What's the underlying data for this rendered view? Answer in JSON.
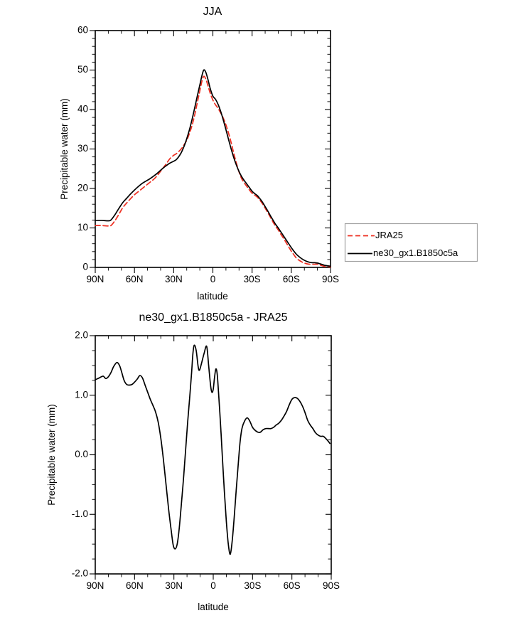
{
  "figure": {
    "background": "#ffffff",
    "axis_color": "#000000"
  },
  "chart_data": [
    {
      "type": "line",
      "title": "JJA",
      "xlabel": "latitude",
      "ylabel": "Precipitable water (mm)",
      "xlim": [
        90,
        -90
      ],
      "ylim": [
        0,
        60
      ],
      "grid": false,
      "xticks": {
        "values": [
          90,
          60,
          30,
          0,
          -30,
          -60,
          -90
        ],
        "labels": [
          "90N",
          "60N",
          "30N",
          "0",
          "30S",
          "60S",
          "90S"
        ],
        "minor_step": 10
      },
      "yticks": {
        "values": [
          0,
          10,
          20,
          30,
          40,
          50,
          60
        ],
        "labels": [
          "0",
          "10",
          "20",
          "30",
          "40",
          "50",
          "60"
        ],
        "minor_step": 2
      },
      "legend": {
        "position": "outside-right",
        "entries": [
          "JRA25",
          "ne30_gx1.B1850c5a"
        ]
      },
      "series": [
        {
          "name": "JRA25",
          "color": "#ee2e20",
          "style": "dashed",
          "x": [
            90,
            85,
            80,
            78,
            75,
            72,
            69,
            66,
            63,
            60,
            57,
            54,
            51,
            48,
            45,
            42,
            39,
            36,
            33,
            30,
            28,
            26,
            24,
            22,
            20,
            18,
            16,
            14,
            12,
            10,
            8.5,
            7,
            5.5,
            4,
            2,
            0,
            -2,
            -4,
            -6,
            -8,
            -10,
            -12,
            -14,
            -16,
            -18,
            -20,
            -22,
            -24,
            -26,
            -28,
            -30,
            -32,
            -34,
            -36,
            -38,
            -40,
            -42,
            -44,
            -46,
            -48,
            -50,
            -52,
            -54,
            -56,
            -58,
            -60,
            -62,
            -64,
            -66,
            -68,
            -70,
            -72,
            -74,
            -76,
            -78,
            -80,
            -82,
            -84,
            -86,
            -88,
            -90
          ],
          "y": [
            10.6,
            10.6,
            10.5,
            10.6,
            11.8,
            13.4,
            15.1,
            16.3,
            17.4,
            18.4,
            19.2,
            20.0,
            20.8,
            21.6,
            22.4,
            23.5,
            24.8,
            26.1,
            27.5,
            28.4,
            28.8,
            29.4,
            30.1,
            31.1,
            32.2,
            33.9,
            35.9,
            38.5,
            41.6,
            44.7,
            47.0,
            48.4,
            47.8,
            46.3,
            44.1,
            42.4,
            41.2,
            40.3,
            39.1,
            37.8,
            36.1,
            34.0,
            31.6,
            28.9,
            26.4,
            24.2,
            22.5,
            21.4,
            20.5,
            19.6,
            18.8,
            18.3,
            17.8,
            17.0,
            16.1,
            15.0,
            13.9,
            12.7,
            11.5,
            10.4,
            9.5,
            8.4,
            7.4,
            6.3,
            5.2,
            4.1,
            3.2,
            2.3,
            1.8,
            1.4,
            1.1,
            0.9,
            0.8,
            0.8,
            0.8,
            0.8,
            0.6,
            0.4,
            0.2,
            0.2,
            0.1
          ]
        },
        {
          "name": "ne30_gx1.B1850c5a",
          "color": "#000000",
          "style": "solid",
          "x": [
            90,
            85,
            80,
            78,
            75,
            72,
            69,
            66,
            63,
            60,
            57,
            54,
            51,
            48,
            45,
            42,
            39,
            36,
            33,
            30,
            28,
            26,
            24,
            22,
            20,
            18,
            16,
            14,
            12,
            10,
            8.5,
            7,
            5.5,
            4,
            2,
            0,
            -2,
            -4,
            -6,
            -8,
            -10,
            -12,
            -14,
            -16,
            -18,
            -20,
            -22,
            -24,
            -26,
            -28,
            -30,
            -32,
            -34,
            -36,
            -38,
            -40,
            -42,
            -44,
            -46,
            -48,
            -50,
            -52,
            -54,
            -56,
            -58,
            -60,
            -62,
            -64,
            -66,
            -68,
            -70,
            -72,
            -74,
            -76,
            -78,
            -80,
            -82,
            -84,
            -86,
            -88,
            -90
          ],
          "y": [
            11.9,
            11.9,
            11.8,
            12.0,
            13.3,
            14.9,
            16.4,
            17.5,
            18.6,
            19.6,
            20.5,
            21.3,
            21.9,
            22.5,
            23.2,
            24.0,
            24.9,
            25.7,
            26.4,
            26.9,
            27.3,
            28.1,
            29.2,
            30.7,
            32.6,
            34.8,
            37.4,
            40.3,
            43.3,
            46.2,
            48.4,
            50.0,
            49.5,
            47.9,
            45.3,
            43.4,
            42.6,
            41.3,
            39.5,
            37.3,
            34.9,
            32.4,
            30.0,
            27.8,
            25.9,
            24.3,
            23.0,
            22.0,
            21.1,
            20.2,
            19.3,
            18.7,
            18.2,
            17.4,
            16.5,
            15.4,
            14.3,
            13.1,
            12.0,
            10.9,
            10.0,
            9.0,
            8.0,
            7.0,
            6.0,
            5.0,
            4.1,
            3.3,
            2.7,
            2.2,
            1.8,
            1.5,
            1.3,
            1.2,
            1.2,
            1.1,
            0.9,
            0.7,
            0.5,
            0.4,
            0.3
          ]
        }
      ]
    },
    {
      "type": "line",
      "title": "ne30_gx1.B1850c5a - JRA25",
      "xlabel": "latitude",
      "ylabel": "Precipitable water (mm)",
      "xlim": [
        90,
        -90
      ],
      "ylim": [
        -2,
        2
      ],
      "grid": false,
      "xticks": {
        "values": [
          90,
          60,
          30,
          0,
          -30,
          -60,
          -90
        ],
        "labels": [
          "90N",
          "60N",
          "30N",
          "0",
          "30S",
          "60S",
          "90S"
        ],
        "minor_step": 10
      },
      "yticks": {
        "values": [
          -2,
          -1,
          0,
          1,
          2
        ],
        "labels": [
          "-2.0",
          "-1.0",
          "0.0",
          "1.0",
          "2.0"
        ],
        "minor_step": 0.25
      },
      "legend": null,
      "series": [
        {
          "name": "ne30_gx1.B1850c5a - JRA25",
          "color": "#000000",
          "style": "solid",
          "x": [
            90,
            87,
            84,
            82,
            80,
            78,
            76,
            73.5,
            71.5,
            70,
            68,
            66,
            64,
            62,
            60,
            58,
            56,
            54,
            52,
            50,
            48,
            46,
            44,
            42,
            40,
            38,
            36,
            34,
            32,
            30.5,
            29,
            27.5,
            26,
            24,
            22.5,
            21,
            19.5,
            18,
            16.5,
            15.5,
            14.5,
            13,
            11.5,
            10.5,
            9,
            7,
            5,
            3.5,
            2,
            1,
            0,
            -1,
            -2,
            -3,
            -4,
            -5,
            -6,
            -7,
            -8.5,
            -10,
            -11.5,
            -13,
            -14.5,
            -16,
            -17.5,
            -19,
            -20.5,
            -22,
            -24,
            -26,
            -28,
            -30,
            -32,
            -34,
            -36,
            -38,
            -40,
            -42,
            -44,
            -46,
            -48,
            -50,
            -52,
            -54,
            -56,
            -58,
            -60,
            -62,
            -64,
            -66,
            -68,
            -70,
            -72,
            -74,
            -76,
            -78,
            -80,
            -82,
            -84,
            -86,
            -88,
            -89
          ],
          "y": [
            1.26,
            1.29,
            1.32,
            1.28,
            1.31,
            1.38,
            1.48,
            1.55,
            1.5,
            1.4,
            1.25,
            1.18,
            1.17,
            1.18,
            1.22,
            1.27,
            1.33,
            1.29,
            1.17,
            1.05,
            0.93,
            0.83,
            0.72,
            0.55,
            0.28,
            -0.08,
            -0.5,
            -0.92,
            -1.28,
            -1.52,
            -1.58,
            -1.5,
            -1.25,
            -0.75,
            -0.35,
            0.1,
            0.55,
            0.95,
            1.38,
            1.7,
            1.84,
            1.75,
            1.48,
            1.42,
            1.53,
            1.7,
            1.82,
            1.5,
            1.16,
            1.05,
            1.1,
            1.3,
            1.44,
            1.36,
            1.06,
            0.72,
            0.35,
            -0.05,
            -0.62,
            -1.12,
            -1.5,
            -1.67,
            -1.44,
            -1.05,
            -0.6,
            -0.18,
            0.22,
            0.45,
            0.57,
            0.62,
            0.56,
            0.46,
            0.41,
            0.38,
            0.38,
            0.42,
            0.44,
            0.44,
            0.44,
            0.46,
            0.5,
            0.53,
            0.58,
            0.65,
            0.73,
            0.84,
            0.93,
            0.96,
            0.95,
            0.9,
            0.82,
            0.71,
            0.58,
            0.5,
            0.44,
            0.37,
            0.33,
            0.31,
            0.31,
            0.27,
            0.22,
            0.19
          ]
        }
      ]
    }
  ]
}
